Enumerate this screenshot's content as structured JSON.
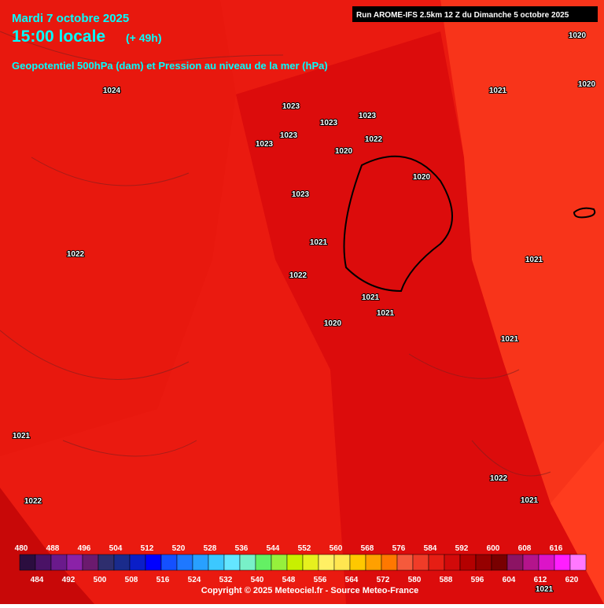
{
  "header": {
    "date": "Mardi 7 octobre 2025",
    "time": "15:00 locale",
    "lead": "(+ 49h)",
    "subtitle": "Geopotentiel 500hPa (dam) et Pression au niveau de la mer (hPa)",
    "run": "Run AROME-IFS 2.5km 12 Z du Dimanche 5 octobre 2025"
  },
  "isobar_labels": [
    1024,
    1023,
    1023,
    1023,
    1023,
    1023,
    1022,
    1020,
    1020,
    1023,
    1021,
    1022,
    1022,
    1021,
    1021,
    1020,
    1021,
    1021,
    1021,
    1022,
    1022,
    1021,
    1020,
    1020,
    1021,
    1021
  ],
  "scale": {
    "values": [
      480,
      484,
      488,
      492,
      496,
      500,
      504,
      508,
      512,
      516,
      520,
      524,
      528,
      532,
      536,
      540,
      544,
      548,
      552,
      556,
      560,
      564,
      568,
      572,
      576,
      580,
      584,
      588,
      592,
      596,
      600,
      604,
      608,
      612,
      616,
      620
    ],
    "colors": [
      "#2b0d3f",
      "#4a1266",
      "#6a1a8c",
      "#8b22a8",
      "#6b1a6e",
      "#2e2e6e",
      "#1a2b8c",
      "#0a1ec8",
      "#0000ff",
      "#1450ff",
      "#1e78ff",
      "#28a0ff",
      "#3cc8ff",
      "#64e6ff",
      "#78f0c8",
      "#64f064",
      "#96f03c",
      "#c8f000",
      "#e6f01e",
      "#fff064",
      "#ffe650",
      "#ffc800",
      "#ffa000",
      "#ff7800",
      "#f55a3c",
      "#f03c28",
      "#e61e14",
      "#d20a0a",
      "#b40000",
      "#960000",
      "#780000",
      "#8c1464",
      "#b4148c",
      "#dc14c8",
      "#ff1eff",
      "#ff78ff"
    ]
  },
  "footer": {
    "copyright": "Copyright © 2025 Meteociel.fr - Source Meteo-France"
  }
}
